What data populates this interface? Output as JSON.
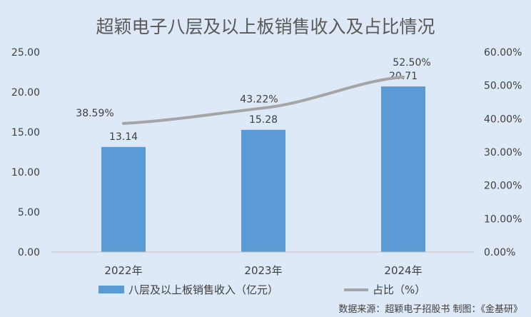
{
  "chart_data": {
    "type": "bar",
    "title": "超颖电子八层及以上板销售收入及占比情况",
    "categories": [
      "2022年",
      "2023年",
      "2024年"
    ],
    "series": [
      {
        "name": "八层及以上板销售收入（亿元）",
        "type": "bar",
        "axis": "left",
        "values": [
          13.14,
          15.28,
          20.71
        ],
        "labels": [
          "13.14",
          "15.28",
          "20.71"
        ],
        "color": "#5b9bd5"
      },
      {
        "name": "占比（%）",
        "type": "line",
        "axis": "right",
        "values": [
          38.59,
          43.22,
          52.5
        ],
        "labels": [
          "38.59%",
          "43.22%",
          "52.50%"
        ],
        "color": "#a5a5a5"
      }
    ],
    "y_left": {
      "range": [
        0,
        25
      ],
      "ticks": [
        "0.00",
        "5.00",
        "10.00",
        "15.00",
        "20.00",
        "25.00"
      ]
    },
    "y_right": {
      "range": [
        0,
        60
      ],
      "ticks": [
        "0.00%",
        "10.00%",
        "20.00%",
        "30.00%",
        "40.00%",
        "50.00%",
        "60.00%"
      ]
    },
    "grid": false,
    "legend_position": "bottom",
    "colors": {
      "background": "#dde9f6",
      "text": "#404040",
      "title": "#595959"
    }
  },
  "source_note": "数据来源：超颖电子招股书  制图：《金基研》"
}
